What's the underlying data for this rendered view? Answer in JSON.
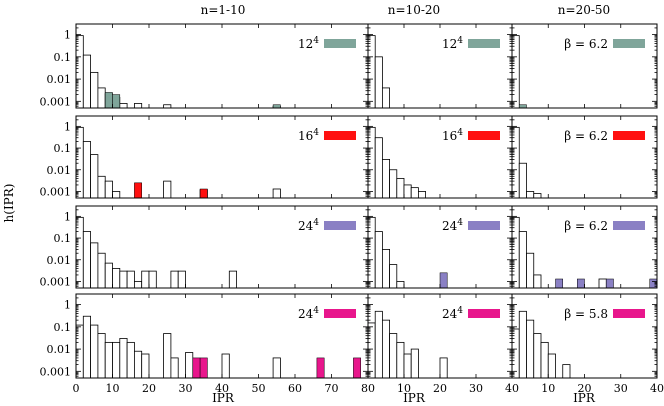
{
  "chart_data": {
    "type": "histogram-grid",
    "ylabel": "h(IPR)",
    "xlabel": "IPR",
    "column_titles": [
      "n=1-10",
      "n=10-20",
      "n=20-50"
    ],
    "yscale": "log",
    "ylim": [
      0.0005,
      3
    ],
    "y_ticks": [
      "1",
      "0.1",
      "0.01",
      "0.001"
    ],
    "y_tick_values": [
      1,
      0.1,
      0.01,
      0.001
    ],
    "columns": [
      {
        "xlim": [
          0,
          80
        ],
        "x_ticks": [
          0,
          10,
          20,
          30,
          40,
          50,
          60,
          70
        ],
        "x_tick_labels": [
          "0",
          "10",
          "20",
          "30",
          "40",
          "50",
          "60",
          "70"
        ]
      },
      {
        "xlim": [
          0,
          40
        ],
        "x_ticks": [
          0,
          10,
          20,
          30,
          40
        ],
        "x_tick_labels": [
          "80",
          "10",
          "20",
          "30",
          "40"
        ]
      },
      {
        "xlim": [
          0,
          40
        ],
        "x_ticks": [
          0,
          10,
          20,
          30,
          40
        ],
        "x_tick_labels": [
          "40",
          "10",
          "20",
          "30",
          "40"
        ]
      }
    ],
    "rows": [
      {
        "color": "#7fa59a",
        "legend": [
          {
            "base": "12",
            "sup": "4"
          },
          {
            "base": "12",
            "sup": "4"
          },
          {
            "text": "β = 6.2"
          }
        ],
        "panels": [
          {
            "bin_width": 2,
            "filled": [
              [
                0,
                0.9
              ],
              [
                2,
                0.05
              ],
              [
                4,
                0.008
              ],
              [
                6,
                0.003
              ],
              [
                8,
                0.0025
              ],
              [
                10,
                0.002
              ],
              [
                12,
                0.0008
              ],
              [
                16,
                0.0007
              ],
              [
                54,
                0.0007
              ]
            ],
            "hollow": [
              [
                0,
                0.9
              ],
              [
                2,
                0.12
              ],
              [
                4,
                0.02
              ],
              [
                6,
                0.004
              ],
              [
                8,
                0.0022
              ],
              [
                10,
                0.0015
              ],
              [
                12,
                0.0008
              ],
              [
                16,
                0.0008
              ],
              [
                24,
                0.0007
              ],
              [
                54,
                0.0006
              ]
            ]
          },
          {
            "bin_width": 2,
            "filled": [
              [
                0,
                0.8
              ],
              [
                2,
                0.06
              ],
              [
                4,
                0.004
              ]
            ],
            "hollow": [
              [
                0,
                0.9
              ],
              [
                2,
                0.1
              ],
              [
                4,
                0.004
              ]
            ]
          },
          {
            "bin_width": 2,
            "filled": [
              [
                0,
                0.9
              ],
              [
                2,
                0.0007
              ]
            ],
            "hollow": [
              [
                0,
                0.9
              ]
            ]
          }
        ]
      },
      {
        "color": "#ff1010",
        "legend": [
          {
            "base": "16",
            "sup": "4"
          },
          {
            "base": "16",
            "sup": "4"
          },
          {
            "text": "β = 6.2"
          }
        ],
        "panels": [
          {
            "bin_width": 2,
            "filled": [
              [
                0,
                0.9
              ],
              [
                2,
                0.2
              ],
              [
                4,
                0.02
              ],
              [
                6,
                0.003
              ],
              [
                16,
                0.0025
              ],
              [
                24,
                0.0013
              ],
              [
                34,
                0.0013
              ],
              [
                54,
                0.0013
              ]
            ],
            "hollow": [
              [
                0,
                0.9
              ],
              [
                2,
                0.2
              ],
              [
                4,
                0.05
              ],
              [
                6,
                0.005
              ],
              [
                8,
                0.003
              ],
              [
                10,
                0.001
              ],
              [
                24,
                0.003
              ],
              [
                34,
                0.0012
              ],
              [
                54,
                0.0013
              ]
            ]
          },
          {
            "bin_width": 2,
            "filled": [
              [
                0,
                0.9
              ],
              [
                2,
                0.1
              ],
              [
                4,
                0.02
              ],
              [
                6,
                0.004
              ],
              [
                8,
                0.003
              ],
              [
                10,
                0.002
              ],
              [
                12,
                0.0012
              ],
              [
                14,
                0.001
              ]
            ],
            "hollow": [
              [
                0,
                0.9
              ],
              [
                2,
                0.3
              ],
              [
                4,
                0.03
              ],
              [
                6,
                0.01
              ],
              [
                8,
                0.004
              ],
              [
                10,
                0.002
              ],
              [
                12,
                0.0015
              ],
              [
                14,
                0.001
              ]
            ]
          },
          {
            "bin_width": 2,
            "filled": [
              [
                0,
                0.9
              ],
              [
                2,
                0.004
              ],
              [
                4,
                0.001
              ]
            ],
            "hollow": [
              [
                0,
                0.9
              ],
              [
                2,
                0.02
              ],
              [
                4,
                0.001
              ],
              [
                6,
                0.0008
              ]
            ]
          }
        ]
      },
      {
        "color": "#8a80c4",
        "legend": [
          {
            "base": "24",
            "sup": "4"
          },
          {
            "base": "24",
            "sup": "4"
          },
          {
            "text": "β = 6.2"
          }
        ],
        "panels": [
          {
            "bin_width": 2,
            "filled": [
              [
                0,
                0.9
              ],
              [
                2,
                0.12
              ],
              [
                4,
                0.03
              ],
              [
                6,
                0.003
              ],
              [
                8,
                0.0013
              ],
              [
                10,
                0.0013
              ],
              [
                12,
                0.0013
              ],
              [
                18,
                0.0013
              ]
            ],
            "hollow": [
              [
                0,
                0.9
              ],
              [
                2,
                0.2
              ],
              [
                4,
                0.06
              ],
              [
                6,
                0.02
              ],
              [
                8,
                0.007
              ],
              [
                10,
                0.004
              ],
              [
                12,
                0.003
              ],
              [
                14,
                0.003
              ],
              [
                16,
                0.001
              ],
              [
                18,
                0.003
              ],
              [
                20,
                0.003
              ],
              [
                26,
                0.003
              ],
              [
                28,
                0.003
              ],
              [
                42,
                0.003
              ]
            ]
          },
          {
            "bin_width": 2,
            "filled": [
              [
                0,
                0.9
              ],
              [
                2,
                0.08
              ],
              [
                4,
                0.003
              ],
              [
                6,
                0.001
              ],
              [
                20,
                0.0025
              ]
            ],
            "hollow": [
              [
                0,
                0.9
              ],
              [
                2,
                0.2
              ],
              [
                4,
                0.03
              ],
              [
                6,
                0.006
              ],
              [
                8,
                0.001
              ]
            ]
          },
          {
            "bin_width": 2,
            "filled": [
              [
                0,
                0.9
              ],
              [
                2,
                0.1
              ],
              [
                4,
                0.003
              ],
              [
                6,
                0.0013
              ],
              [
                12,
                0.0013
              ],
              [
                18,
                0.0013
              ],
              [
                26,
                0.0013
              ],
              [
                38,
                0.0013
              ]
            ],
            "hollow": [
              [
                0,
                0.9
              ],
              [
                2,
                0.2
              ],
              [
                4,
                0.02
              ],
              [
                6,
                0.002
              ],
              [
                24,
                0.0013
              ]
            ]
          }
        ]
      },
      {
        "color": "#e8168c",
        "legend": [
          {
            "base": "24",
            "sup": "4"
          },
          {
            "base": "24",
            "sup": "4"
          },
          {
            "text": "β = 5.8"
          }
        ],
        "panels": [
          {
            "bin_width": 2,
            "filled": [
              [
                0,
                0.12
              ],
              [
                2,
                0.13
              ],
              [
                4,
                0.05
              ],
              [
                6,
                0.02
              ],
              [
                8,
                0.02
              ],
              [
                10,
                0.007
              ],
              [
                12,
                0.02
              ],
              [
                14,
                0.009
              ],
              [
                16,
                0.008
              ],
              [
                18,
                0.006
              ],
              [
                24,
                0.05
              ],
              [
                26,
                0.004
              ],
              [
                30,
                0.004
              ],
              [
                32,
                0.004
              ],
              [
                34,
                0.004
              ],
              [
                54,
                0.004
              ],
              [
                66,
                0.004
              ],
              [
                76,
                0.004
              ]
            ],
            "hollow": [
              [
                0,
                0.12
              ],
              [
                2,
                0.3
              ],
              [
                4,
                0.12
              ],
              [
                6,
                0.05
              ],
              [
                8,
                0.02
              ],
              [
                10,
                0.02
              ],
              [
                12,
                0.03
              ],
              [
                14,
                0.02
              ],
              [
                16,
                0.008
              ],
              [
                18,
                0.006
              ],
              [
                24,
                0.05
              ],
              [
                26,
                0.004
              ],
              [
                30,
                0.007
              ],
              [
                40,
                0.006
              ],
              [
                54,
                0.004
              ]
            ]
          },
          {
            "bin_width": 2,
            "filled": [
              [
                0,
                0.15
              ],
              [
                2,
                0.3
              ],
              [
                4,
                0.1
              ],
              [
                6,
                0.02
              ],
              [
                8,
                0.005
              ],
              [
                10,
                0.006
              ],
              [
                12,
                0.01
              ],
              [
                20,
                0.004
              ]
            ],
            "hollow": [
              [
                0,
                0.15
              ],
              [
                2,
                0.5
              ],
              [
                4,
                0.2
              ],
              [
                6,
                0.05
              ],
              [
                8,
                0.02
              ],
              [
                10,
                0.006
              ],
              [
                12,
                0.01
              ],
              [
                20,
                0.004
              ]
            ]
          },
          {
            "bin_width": 2,
            "filled": [
              [
                0,
                0.06
              ],
              [
                2,
                0.3
              ],
              [
                4,
                0.1
              ],
              [
                6,
                0.03
              ],
              [
                8,
                0.01
              ],
              [
                10,
                0.005
              ],
              [
                14,
                0.002
              ]
            ],
            "hollow": [
              [
                0,
                0.08
              ],
              [
                2,
                0.5
              ],
              [
                4,
                0.2
              ],
              [
                6,
                0.05
              ],
              [
                8,
                0.02
              ],
              [
                10,
                0.006
              ],
              [
                14,
                0.002
              ]
            ]
          }
        ]
      }
    ]
  }
}
